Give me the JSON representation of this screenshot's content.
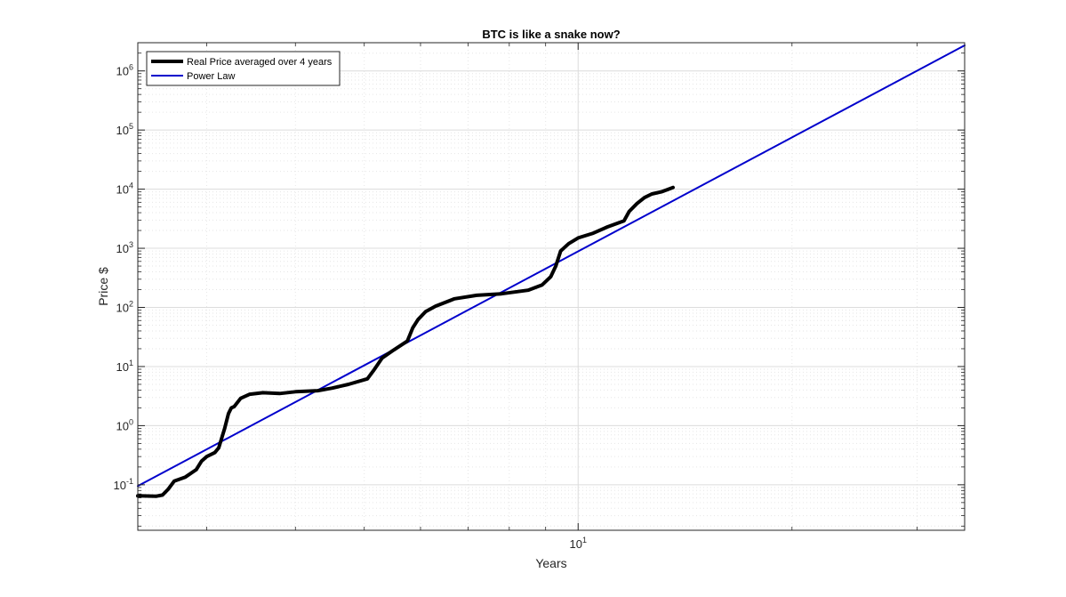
{
  "chart_data": {
    "type": "line",
    "title": "BTC is like a snake now?",
    "xlabel": "Years",
    "ylabel": "Price $",
    "xscale": "log",
    "yscale": "log",
    "xlim": [
      2.4,
      35
    ],
    "ylim": [
      0.017,
      3000000
    ],
    "x_ticks": [
      {
        "value": 10,
        "base": "10",
        "exp": "1"
      }
    ],
    "y_ticks": [
      {
        "value": 0.1,
        "base": "10",
        "exp": "-1"
      },
      {
        "value": 1,
        "base": "10",
        "exp": "0"
      },
      {
        "value": 10,
        "base": "10",
        "exp": "1"
      },
      {
        "value": 100,
        "base": "10",
        "exp": "2"
      },
      {
        "value": 1000,
        "base": "10",
        "exp": "3"
      },
      {
        "value": 10000,
        "base": "10",
        "exp": "4"
      },
      {
        "value": 100000,
        "base": "10",
        "exp": "5"
      },
      {
        "value": 1000000,
        "base": "10",
        "exp": "6"
      }
    ],
    "grid": true,
    "minor_grid": true,
    "legend_position": "top-left",
    "series": [
      {
        "name": "Real Price averaged over 4 years",
        "color": "#000000",
        "points": [
          [
            2.4,
            0.065
          ],
          [
            2.55,
            0.064
          ],
          [
            2.6,
            0.067
          ],
          [
            2.65,
            0.085
          ],
          [
            2.7,
            0.115
          ],
          [
            2.8,
            0.135
          ],
          [
            2.9,
            0.18
          ],
          [
            2.95,
            0.25
          ],
          [
            3.0,
            0.3
          ],
          [
            3.08,
            0.35
          ],
          [
            3.12,
            0.42
          ],
          [
            3.18,
            0.9
          ],
          [
            3.22,
            1.6
          ],
          [
            3.25,
            2.0
          ],
          [
            3.28,
            2.1
          ],
          [
            3.35,
            2.9
          ],
          [
            3.45,
            3.4
          ],
          [
            3.6,
            3.6
          ],
          [
            3.8,
            3.5
          ],
          [
            4.0,
            3.75
          ],
          [
            4.3,
            3.9
          ],
          [
            4.5,
            4.3
          ],
          [
            4.75,
            5.0
          ],
          [
            5.05,
            6.2
          ],
          [
            5.15,
            8.5
          ],
          [
            5.3,
            14.0
          ],
          [
            5.5,
            19.0
          ],
          [
            5.75,
            27.0
          ],
          [
            5.85,
            45.0
          ],
          [
            5.95,
            62.0
          ],
          [
            6.1,
            85.0
          ],
          [
            6.3,
            105.0
          ],
          [
            6.7,
            140.0
          ],
          [
            7.2,
            160.0
          ],
          [
            7.8,
            170.0
          ],
          [
            8.5,
            195.0
          ],
          [
            8.9,
            240.0
          ],
          [
            9.15,
            330.0
          ],
          [
            9.3,
            500.0
          ],
          [
            9.45,
            900.0
          ],
          [
            9.7,
            1200.0
          ],
          [
            10.0,
            1500.0
          ],
          [
            10.5,
            1800.0
          ],
          [
            11.0,
            2300.0
          ],
          [
            11.6,
            2900.0
          ],
          [
            11.8,
            4200.0
          ],
          [
            12.1,
            5700.0
          ],
          [
            12.4,
            7200.0
          ],
          [
            12.7,
            8300.0
          ],
          [
            13.1,
            9000.0
          ],
          [
            13.6,
            10700.0
          ]
        ]
      },
      {
        "name": "Power Law",
        "color": "#0000cc",
        "points": [
          [
            2.4,
            0.095
          ],
          [
            35,
            2700000
          ]
        ]
      }
    ]
  }
}
